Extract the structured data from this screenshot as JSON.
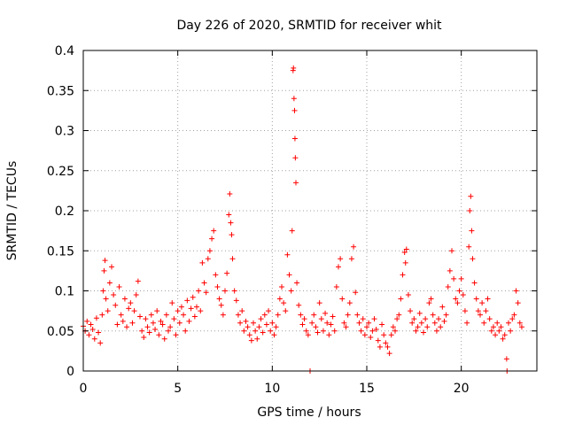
{
  "chart_data": {
    "type": "scatter",
    "title": "Day 226 of 2020, SRMTID for receiver whit",
    "xlabel": "GPS time / hours",
    "ylabel": "SRMTID / TECUs",
    "xlim": [
      0,
      24
    ],
    "ylim": [
      0,
      0.4
    ],
    "x_ticks": [
      0,
      5,
      10,
      15,
      20
    ],
    "y_ticks": [
      0,
      0.05,
      0.1,
      0.15,
      0.2,
      0.25,
      0.3,
      0.35,
      0.4
    ],
    "x_tick_labels": [
      "0",
      "5",
      "10",
      "15",
      "20"
    ],
    "y_tick_labels": [
      "0",
      "0.05",
      "0.1",
      "0.15",
      "0.2",
      "0.25",
      "0.3",
      "0.35",
      "0.4"
    ],
    "grid": true,
    "marker": "+",
    "color": "#ff0000",
    "series": [
      {
        "name": "SRMTID",
        "points": [
          [
            0.0,
            0.056
          ],
          [
            0.1,
            0.05
          ],
          [
            0.2,
            0.062
          ],
          [
            0.3,
            0.045
          ],
          [
            0.4,
            0.058
          ],
          [
            0.5,
            0.052
          ],
          [
            0.6,
            0.04
          ],
          [
            0.7,
            0.066
          ],
          [
            0.8,
            0.048
          ],
          [
            0.9,
            0.035
          ],
          [
            1.0,
            0.07
          ],
          [
            1.05,
            0.1
          ],
          [
            1.1,
            0.125
          ],
          [
            1.15,
            0.138
          ],
          [
            1.2,
            0.09
          ],
          [
            1.3,
            0.075
          ],
          [
            1.4,
            0.11
          ],
          [
            1.5,
            0.13
          ],
          [
            1.6,
            0.095
          ],
          [
            1.7,
            0.082
          ],
          [
            1.8,
            0.058
          ],
          [
            1.9,
            0.105
          ],
          [
            2.0,
            0.07
          ],
          [
            2.1,
            0.062
          ],
          [
            2.2,
            0.09
          ],
          [
            2.3,
            0.055
          ],
          [
            2.4,
            0.078
          ],
          [
            2.5,
            0.085
          ],
          [
            2.6,
            0.06
          ],
          [
            2.7,
            0.075
          ],
          [
            2.8,
            0.095
          ],
          [
            2.9,
            0.112
          ],
          [
            3.0,
            0.068
          ],
          [
            3.1,
            0.05
          ],
          [
            3.2,
            0.042
          ],
          [
            3.3,
            0.065
          ],
          [
            3.4,
            0.055
          ],
          [
            3.5,
            0.048
          ],
          [
            3.6,
            0.07
          ],
          [
            3.7,
            0.06
          ],
          [
            3.8,
            0.052
          ],
          [
            3.9,
            0.075
          ],
          [
            4.0,
            0.045
          ],
          [
            4.1,
            0.062
          ],
          [
            4.2,
            0.058
          ],
          [
            4.3,
            0.04
          ],
          [
            4.4,
            0.07
          ],
          [
            4.5,
            0.05
          ],
          [
            4.6,
            0.055
          ],
          [
            4.7,
            0.085
          ],
          [
            4.8,
            0.065
          ],
          [
            4.9,
            0.045
          ],
          [
            5.0,
            0.075
          ],
          [
            5.1,
            0.06
          ],
          [
            5.2,
            0.08
          ],
          [
            5.3,
            0.07
          ],
          [
            5.4,
            0.05
          ],
          [
            5.5,
            0.088
          ],
          [
            5.6,
            0.062
          ],
          [
            5.7,
            0.078
          ],
          [
            5.8,
            0.092
          ],
          [
            5.9,
            0.068
          ],
          [
            6.0,
            0.08
          ],
          [
            6.1,
            0.1
          ],
          [
            6.2,
            0.075
          ],
          [
            6.3,
            0.135
          ],
          [
            6.4,
            0.11
          ],
          [
            6.5,
            0.098
          ],
          [
            6.6,
            0.14
          ],
          [
            6.7,
            0.15
          ],
          [
            6.8,
            0.165
          ],
          [
            6.9,
            0.175
          ],
          [
            7.0,
            0.12
          ],
          [
            7.1,
            0.105
          ],
          [
            7.2,
            0.09
          ],
          [
            7.3,
            0.082
          ],
          [
            7.4,
            0.07
          ],
          [
            7.5,
            0.1
          ],
          [
            7.6,
            0.122
          ],
          [
            7.7,
            0.195
          ],
          [
            7.75,
            0.221
          ],
          [
            7.8,
            0.185
          ],
          [
            7.85,
            0.17
          ],
          [
            7.9,
            0.14
          ],
          [
            8.0,
            0.1
          ],
          [
            8.1,
            0.088
          ],
          [
            8.2,
            0.07
          ],
          [
            8.3,
            0.06
          ],
          [
            8.4,
            0.075
          ],
          [
            8.5,
            0.05
          ],
          [
            8.6,
            0.062
          ],
          [
            8.7,
            0.055
          ],
          [
            8.8,
            0.045
          ],
          [
            8.9,
            0.038
          ],
          [
            9.0,
            0.06
          ],
          [
            9.1,
            0.05
          ],
          [
            9.2,
            0.04
          ],
          [
            9.3,
            0.055
          ],
          [
            9.4,
            0.065
          ],
          [
            9.5,
            0.048
          ],
          [
            9.6,
            0.07
          ],
          [
            9.7,
            0.058
          ],
          [
            9.8,
            0.075
          ],
          [
            9.9,
            0.05
          ],
          [
            10.0,
            0.06
          ],
          [
            10.1,
            0.045
          ],
          [
            10.2,
            0.055
          ],
          [
            10.3,
            0.07
          ],
          [
            10.4,
            0.09
          ],
          [
            10.5,
            0.105
          ],
          [
            10.6,
            0.085
          ],
          [
            10.7,
            0.075
          ],
          [
            10.8,
            0.145
          ],
          [
            10.9,
            0.12
          ],
          [
            11.0,
            0.1
          ],
          [
            11.05,
            0.175
          ],
          [
            11.1,
            0.375
          ],
          [
            11.12,
            0.378
          ],
          [
            11.15,
            0.34
          ],
          [
            11.18,
            0.325
          ],
          [
            11.2,
            0.29
          ],
          [
            11.22,
            0.266
          ],
          [
            11.25,
            0.235
          ],
          [
            11.3,
            0.11
          ],
          [
            11.4,
            0.082
          ],
          [
            11.5,
            0.07
          ],
          [
            11.6,
            0.058
          ],
          [
            11.7,
            0.065
          ],
          [
            11.8,
            0.05
          ],
          [
            11.9,
            0.045
          ],
          [
            12.0,
            0.0
          ],
          [
            12.1,
            0.06
          ],
          [
            12.2,
            0.07
          ],
          [
            12.3,
            0.055
          ],
          [
            12.4,
            0.048
          ],
          [
            12.5,
            0.085
          ],
          [
            12.6,
            0.065
          ],
          [
            12.7,
            0.05
          ],
          [
            12.8,
            0.072
          ],
          [
            12.9,
            0.06
          ],
          [
            13.0,
            0.045
          ],
          [
            13.1,
            0.058
          ],
          [
            13.2,
            0.068
          ],
          [
            13.3,
            0.05
          ],
          [
            13.4,
            0.105
          ],
          [
            13.5,
            0.13
          ],
          [
            13.6,
            0.14
          ],
          [
            13.7,
            0.09
          ],
          [
            13.8,
            0.06
          ],
          [
            13.9,
            0.055
          ],
          [
            14.0,
            0.07
          ],
          [
            14.1,
            0.085
          ],
          [
            14.2,
            0.14
          ],
          [
            14.3,
            0.155
          ],
          [
            14.4,
            0.098
          ],
          [
            14.5,
            0.07
          ],
          [
            14.6,
            0.06
          ],
          [
            14.7,
            0.05
          ],
          [
            14.8,
            0.065
          ],
          [
            14.9,
            0.045
          ],
          [
            15.0,
            0.055
          ],
          [
            15.1,
            0.06
          ],
          [
            15.2,
            0.042
          ],
          [
            15.3,
            0.05
          ],
          [
            15.4,
            0.065
          ],
          [
            15.5,
            0.052
          ],
          [
            15.6,
            0.038
          ],
          [
            15.7,
            0.03
          ],
          [
            15.8,
            0.058
          ],
          [
            15.9,
            0.045
          ],
          [
            16.0,
            0.035
          ],
          [
            16.1,
            0.03
          ],
          [
            16.2,
            0.022
          ],
          [
            16.3,
            0.045
          ],
          [
            16.4,
            0.055
          ],
          [
            16.5,
            0.05
          ],
          [
            16.6,
            0.065
          ],
          [
            16.7,
            0.07
          ],
          [
            16.8,
            0.09
          ],
          [
            16.9,
            0.12
          ],
          [
            17.0,
            0.148
          ],
          [
            17.05,
            0.135
          ],
          [
            17.1,
            0.152
          ],
          [
            17.2,
            0.095
          ],
          [
            17.3,
            0.075
          ],
          [
            17.4,
            0.06
          ],
          [
            17.5,
            0.065
          ],
          [
            17.6,
            0.05
          ],
          [
            17.7,
            0.055
          ],
          [
            17.8,
            0.072
          ],
          [
            17.9,
            0.06
          ],
          [
            18.0,
            0.048
          ],
          [
            18.1,
            0.065
          ],
          [
            18.2,
            0.055
          ],
          [
            18.3,
            0.085
          ],
          [
            18.4,
            0.09
          ],
          [
            18.5,
            0.07
          ],
          [
            18.6,
            0.06
          ],
          [
            18.7,
            0.05
          ],
          [
            18.8,
            0.065
          ],
          [
            18.9,
            0.055
          ],
          [
            19.0,
            0.08
          ],
          [
            19.1,
            0.062
          ],
          [
            19.2,
            0.07
          ],
          [
            19.3,
            0.105
          ],
          [
            19.4,
            0.125
          ],
          [
            19.5,
            0.15
          ],
          [
            19.6,
            0.115
          ],
          [
            19.7,
            0.09
          ],
          [
            19.8,
            0.085
          ],
          [
            19.9,
            0.1
          ],
          [
            20.0,
            0.115
          ],
          [
            20.1,
            0.095
          ],
          [
            20.2,
            0.075
          ],
          [
            20.3,
            0.06
          ],
          [
            20.4,
            0.155
          ],
          [
            20.45,
            0.2
          ],
          [
            20.5,
            0.218
          ],
          [
            20.55,
            0.175
          ],
          [
            20.6,
            0.14
          ],
          [
            20.7,
            0.11
          ],
          [
            20.8,
            0.09
          ],
          [
            20.9,
            0.075
          ],
          [
            21.0,
            0.07
          ],
          [
            21.1,
            0.085
          ],
          [
            21.2,
            0.06
          ],
          [
            21.3,
            0.075
          ],
          [
            21.4,
            0.09
          ],
          [
            21.5,
            0.065
          ],
          [
            21.6,
            0.05
          ],
          [
            21.7,
            0.055
          ],
          [
            21.8,
            0.045
          ],
          [
            21.9,
            0.06
          ],
          [
            22.0,
            0.05
          ],
          [
            22.1,
            0.055
          ],
          [
            22.2,
            0.04
          ],
          [
            22.3,
            0.045
          ],
          [
            22.4,
            0.015
          ],
          [
            22.42,
            0.0
          ],
          [
            22.5,
            0.06
          ],
          [
            22.6,
            0.05
          ],
          [
            22.7,
            0.065
          ],
          [
            22.8,
            0.07
          ],
          [
            22.9,
            0.1
          ],
          [
            23.0,
            0.085
          ],
          [
            23.1,
            0.06
          ],
          [
            23.2,
            0.055
          ]
        ]
      }
    ]
  }
}
